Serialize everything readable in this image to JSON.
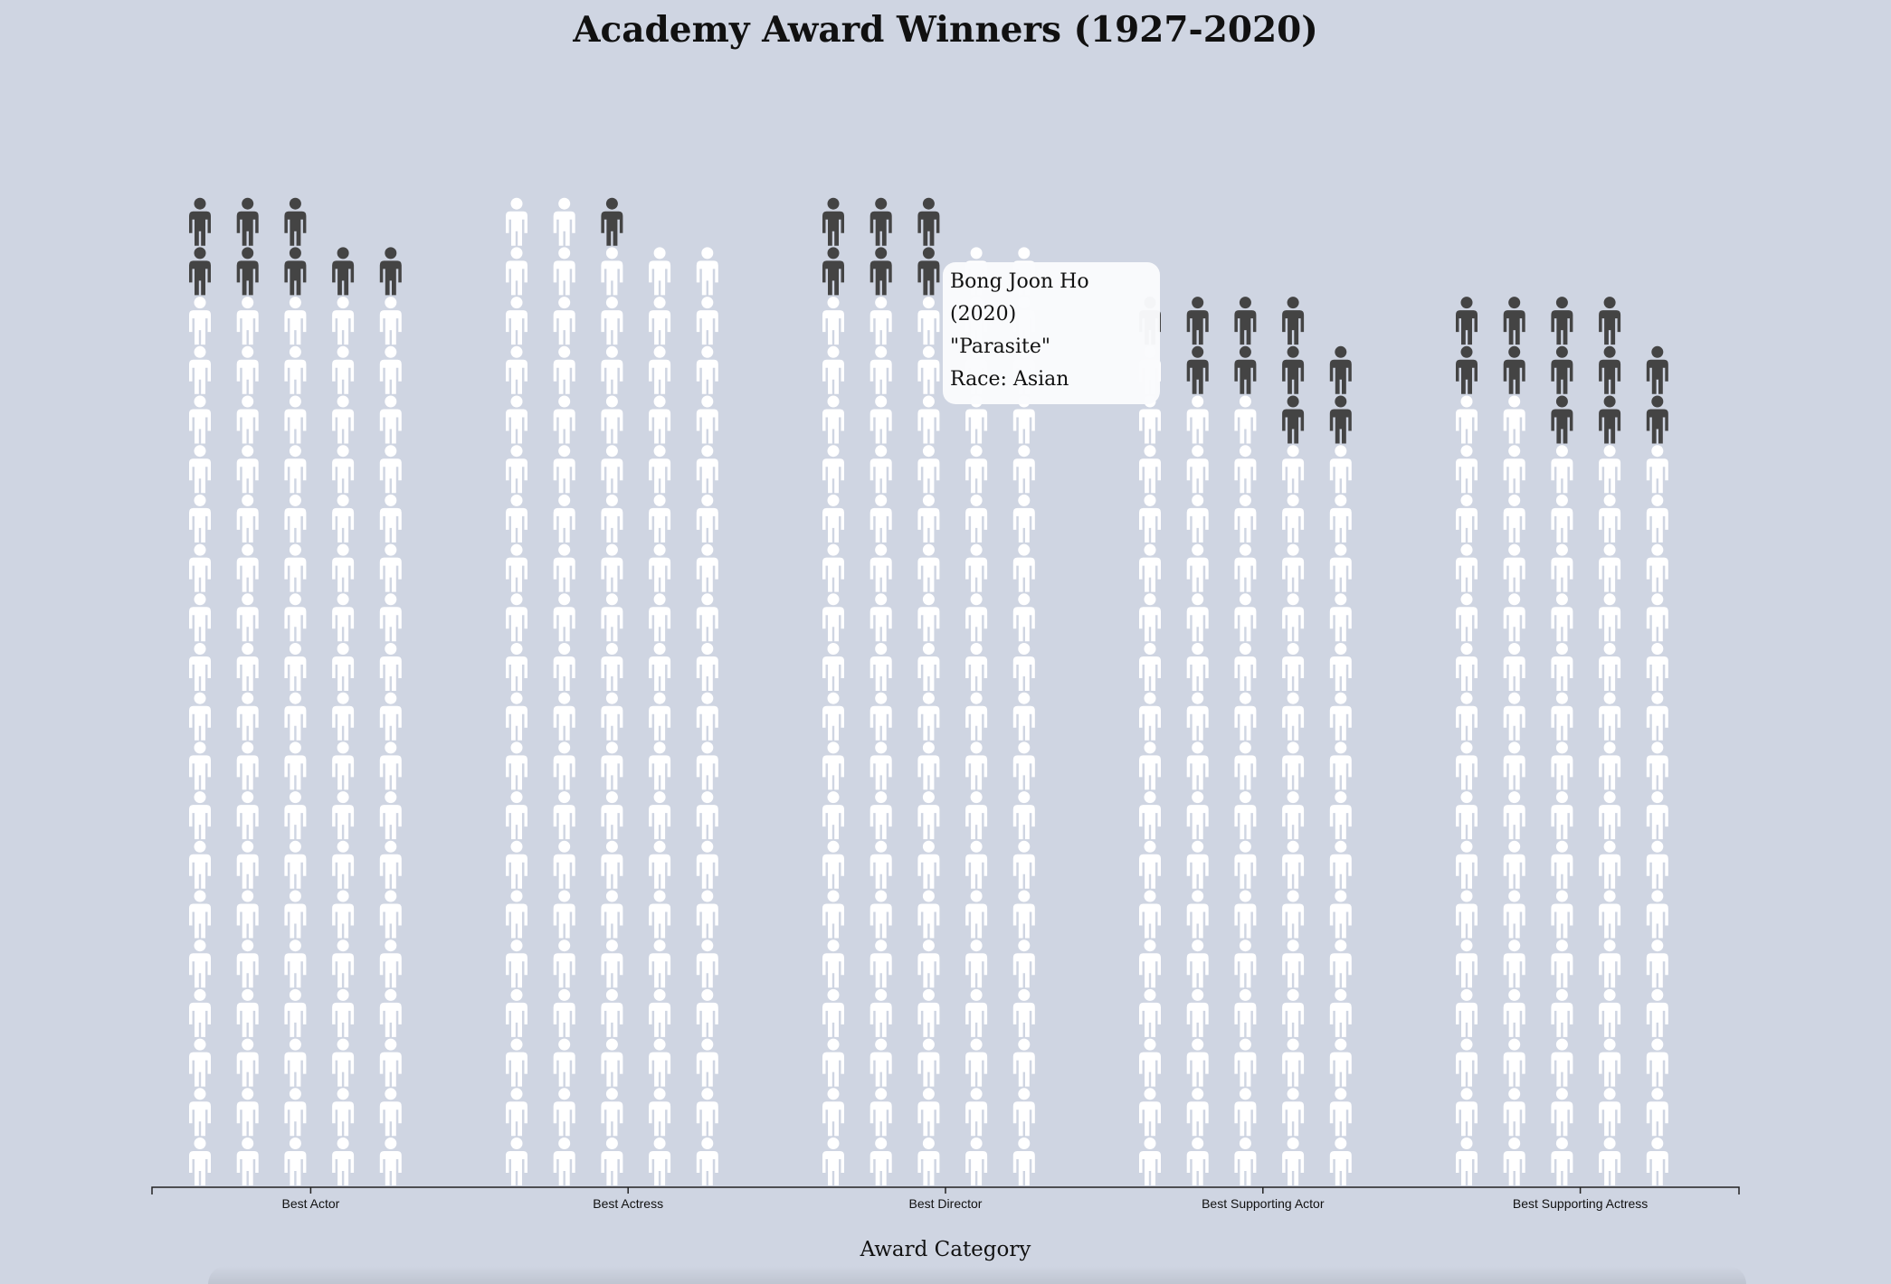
{
  "chart_data": {
    "type": "pictogram",
    "title": "Academy Award Winners (1927-2020)",
    "xlabel": "Award Category",
    "categories": [
      "Best Actor",
      "Best Actress",
      "Best Director",
      "Best Supporting Actor",
      "Best Supporting Actress"
    ],
    "columns_per_category": 5,
    "stack_heights": [
      [
        20,
        20,
        20,
        19,
        19
      ],
      [
        20,
        20,
        20,
        19,
        19
      ],
      [
        20,
        20,
        20,
        19,
        19
      ],
      [
        18,
        18,
        18,
        18,
        17
      ],
      [
        18,
        18,
        18,
        18,
        17
      ]
    ],
    "dark_icons_per_column": [
      [
        2,
        2,
        2,
        1,
        1
      ],
      [
        0,
        0,
        1,
        0,
        0
      ],
      [
        2,
        2,
        2,
        0,
        0
      ],
      [
        1,
        2,
        2,
        3,
        2
      ],
      [
        2,
        2,
        3,
        3,
        2
      ]
    ],
    "highlighted_icon": {
      "category": "Best Director",
      "column": 4,
      "position_from_top": 1
    },
    "colors": {
      "background": "#cfd5e2",
      "icon_default": "#ffffff",
      "icon_non_white": "#444444",
      "axis": "#222222"
    }
  },
  "tooltip": {
    "name": "Bong Joon Ho",
    "year": "(2020)",
    "film": "\"Parasite\"",
    "race": "Race: Asian"
  }
}
